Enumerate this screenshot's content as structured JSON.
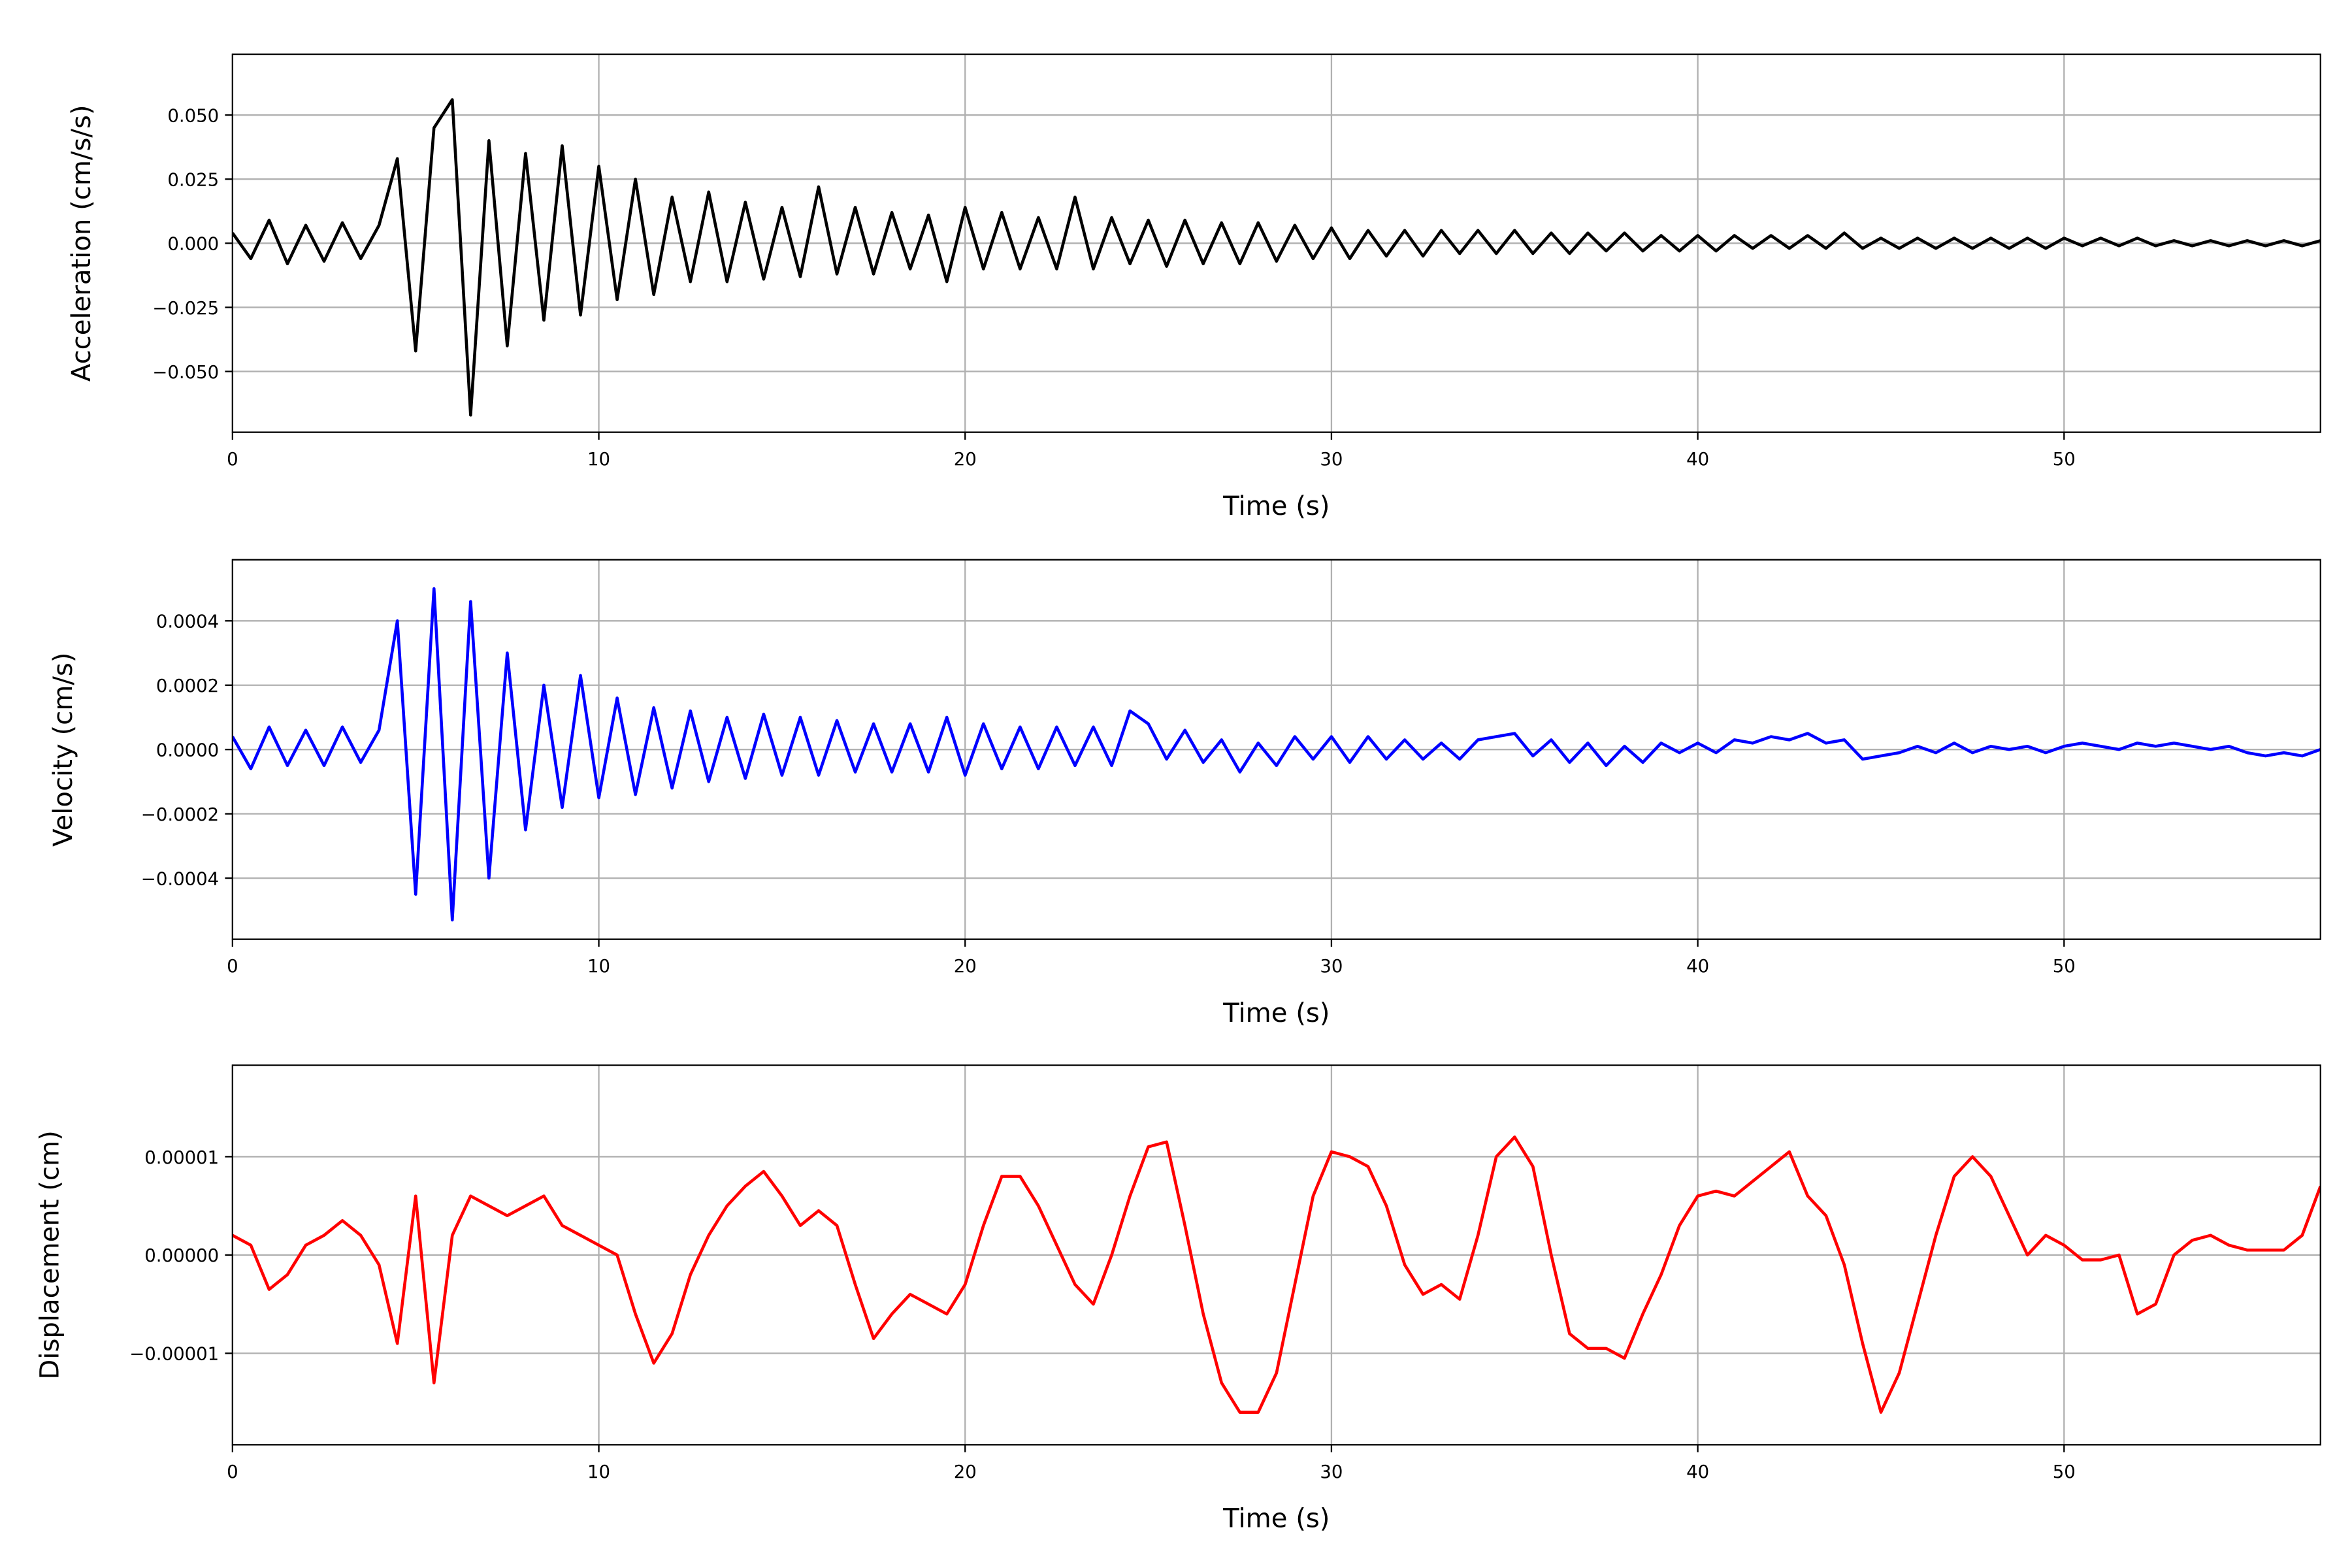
{
  "chart_data": [
    {
      "type": "line",
      "ylabel": "Acceleration (cm/s/s)",
      "xlabel": "Time (s)",
      "grid": true,
      "xlim": [
        0,
        57
      ],
      "xticks": [
        0,
        10,
        20,
        30,
        40,
        50
      ],
      "ylim": [
        -0.0737,
        0.0737
      ],
      "yticks": [
        {
          "value": -0.05,
          "label": "−0.050"
        },
        {
          "value": -0.025,
          "label": "−0.025"
        },
        {
          "value": 0,
          "label": "0.000"
        },
        {
          "value": 0.025,
          "label": "0.025"
        },
        {
          "value": 0.05,
          "label": "0.050"
        }
      ],
      "x": [
        0,
        0.5,
        1,
        1.5,
        2,
        2.5,
        3,
        3.5,
        4,
        4.5,
        5,
        5.5,
        6,
        6.5,
        7,
        7.5,
        8,
        8.5,
        9,
        9.5,
        10,
        10.5,
        11,
        11.5,
        12,
        12.5,
        13,
        13.5,
        14,
        14.5,
        15,
        15.5,
        16,
        16.5,
        17,
        17.5,
        18,
        18.5,
        19,
        19.5,
        20,
        20.5,
        21,
        21.5,
        22,
        22.5,
        23,
        23.5,
        24,
        24.5,
        25,
        25.5,
        26,
        26.5,
        27,
        27.5,
        28,
        28.5,
        29,
        29.5,
        30,
        30.5,
        31,
        31.5,
        32,
        32.5,
        33,
        33.5,
        34,
        34.5,
        35,
        35.5,
        36,
        36.5,
        37,
        37.5,
        38,
        38.5,
        39,
        39.5,
        40,
        40.5,
        41,
        41.5,
        42,
        42.5,
        43,
        43.5,
        44,
        44.5,
        45,
        45.5,
        46,
        46.5,
        47,
        47.5,
        48,
        48.5,
        49,
        49.5,
        50,
        50.5,
        51,
        51.5,
        52,
        52.5,
        53,
        53.5,
        54,
        54.5,
        55,
        55.5,
        56,
        56.5,
        57
      ],
      "series": [
        {
          "color": "#000000",
          "values": [
            0.004,
            -0.006,
            0.009,
            -0.008,
            0.007,
            -0.007,
            0.008,
            -0.006,
            0.007,
            0.033,
            -0.042,
            0.045,
            0.056,
            -0.067,
            0.04,
            -0.04,
            0.035,
            -0.03,
            0.038,
            -0.028,
            0.03,
            -0.022,
            0.025,
            -0.02,
            0.018,
            -0.015,
            0.02,
            -0.015,
            0.016,
            -0.014,
            0.014,
            -0.013,
            0.022,
            -0.012,
            0.014,
            -0.012,
            0.012,
            -0.01,
            0.011,
            -0.015,
            0.014,
            -0.01,
            0.012,
            -0.01,
            0.01,
            -0.01,
            0.018,
            -0.01,
            0.01,
            -0.008,
            0.009,
            -0.009,
            0.009,
            -0.008,
            0.008,
            -0.008,
            0.008,
            -0.007,
            0.007,
            -0.006,
            0.006,
            -0.006,
            0.005,
            -0.005,
            0.005,
            -0.005,
            0.005,
            -0.004,
            0.005,
            -0.004,
            0.005,
            -0.004,
            0.004,
            -0.004,
            0.004,
            -0.003,
            0.004,
            -0.003,
            0.003,
            -0.003,
            0.003,
            -0.003,
            0.003,
            -0.002,
            0.003,
            -0.002,
            0.003,
            -0.002,
            0.004,
            -0.002,
            0.002,
            -0.002,
            0.002,
            -0.002,
            0.002,
            -0.002,
            0.002,
            -0.002,
            0.002,
            -0.002,
            0.002,
            -0.001,
            0.002,
            -0.001,
            0.002,
            -0.001,
            0.001,
            -0.001,
            0.001,
            -0.001,
            0.001,
            -0.001,
            0.001,
            -0.001,
            0.001
          ]
        }
      ]
    },
    {
      "type": "line",
      "ylabel": "Velocity (cm/s)",
      "xlabel": "Time (s)",
      "grid": true,
      "xlim": [
        0,
        57
      ],
      "xticks": [
        0,
        10,
        20,
        30,
        40,
        50
      ],
      "ylim": [
        -0.00059,
        0.00059
      ],
      "yticks": [
        {
          "value": -0.0004,
          "label": "−0.0004"
        },
        {
          "value": -0.0002,
          "label": "−0.0002"
        },
        {
          "value": 0,
          "label": "0.0000"
        },
        0.0002,
        0.0004
      ],
      "x": [
        0,
        0.5,
        1,
        1.5,
        2,
        2.5,
        3,
        3.5,
        4,
        4.5,
        5,
        5.5,
        6,
        6.5,
        7,
        7.5,
        8,
        8.5,
        9,
        9.5,
        10,
        10.5,
        11,
        11.5,
        12,
        12.5,
        13,
        13.5,
        14,
        14.5,
        15,
        15.5,
        16,
        16.5,
        17,
        17.5,
        18,
        18.5,
        19,
        19.5,
        20,
        20.5,
        21,
        21.5,
        22,
        22.5,
        23,
        23.5,
        24,
        24.5,
        25,
        25.5,
        26,
        26.5,
        27,
        27.5,
        28,
        28.5,
        29,
        29.5,
        30,
        30.5,
        31,
        31.5,
        32,
        32.5,
        33,
        33.5,
        34,
        34.5,
        35,
        35.5,
        36,
        36.5,
        37,
        37.5,
        38,
        38.5,
        39,
        39.5,
        40,
        40.5,
        41,
        41.5,
        42,
        42.5,
        43,
        43.5,
        44,
        44.5,
        45,
        45.5,
        46,
        46.5,
        47,
        47.5,
        48,
        48.5,
        49,
        49.5,
        50,
        50.5,
        51,
        51.5,
        52,
        52.5,
        53,
        53.5,
        54,
        54.5,
        55,
        55.5,
        56,
        56.5,
        57
      ],
      "series": [
        {
          "color": "#0000ff",
          "values": [
            4e-05,
            -6e-05,
            7e-05,
            -5e-05,
            6e-05,
            -5e-05,
            7e-05,
            -4e-05,
            6e-05,
            0.0004,
            -0.00045,
            0.0005,
            -0.00053,
            0.00046,
            -0.0004,
            0.0003,
            -0.00025,
            0.0002,
            -0.00018,
            0.00023,
            -0.00015,
            0.00016,
            -0.00014,
            0.00013,
            -0.00012,
            0.00012,
            -0.0001,
            0.0001,
            -9e-05,
            0.00011,
            -8e-05,
            0.0001,
            -8e-05,
            9e-05,
            -7e-05,
            8e-05,
            -7e-05,
            8e-05,
            -7e-05,
            0.0001,
            -8e-05,
            8e-05,
            -6e-05,
            7e-05,
            -6e-05,
            7e-05,
            -5e-05,
            7e-05,
            -5e-05,
            0.00012,
            8e-05,
            -3e-05,
            6e-05,
            -4e-05,
            3e-05,
            -7e-05,
            2e-05,
            -5e-05,
            4e-05,
            -3e-05,
            4e-05,
            -4e-05,
            4e-05,
            -3e-05,
            3e-05,
            -3e-05,
            2e-05,
            -3e-05,
            3e-05,
            4e-05,
            5e-05,
            -2e-05,
            3e-05,
            -4e-05,
            2e-05,
            -5e-05,
            1e-05,
            -4e-05,
            2e-05,
            -1e-05,
            2e-05,
            -1e-05,
            3e-05,
            2e-05,
            4e-05,
            3e-05,
            5e-05,
            2e-05,
            3e-05,
            -3e-05,
            -2e-05,
            -1e-05,
            1e-05,
            -1e-05,
            2e-05,
            -1e-05,
            1e-05,
            0,
            1e-05,
            -1e-05,
            1e-05,
            2e-05,
            1e-05,
            0,
            2e-05,
            1e-05,
            2e-05,
            1e-05,
            0,
            1e-05,
            -1e-05,
            -2e-05,
            -1e-05,
            -2e-05,
            0
          ]
        }
      ]
    },
    {
      "type": "line",
      "ylabel": "Displacement (cm)",
      "xlabel": "Time (s)",
      "grid": true,
      "xlim": [
        0,
        57
      ],
      "xticks": [
        0,
        10,
        20,
        30,
        40,
        50
      ],
      "ylim": [
        -1.93e-05,
        1.93e-05
      ],
      "yticks": [
        {
          "value": -1e-05,
          "label": "−0.00001"
        },
        {
          "value": 0,
          "label": "0.00000"
        },
        1e-05
      ],
      "x": [
        0,
        0.5,
        1,
        1.5,
        2,
        2.5,
        3,
        3.5,
        4,
        4.5,
        5,
        5.5,
        6,
        6.5,
        7,
        7.5,
        8,
        8.5,
        9,
        9.5,
        10,
        10.5,
        11,
        11.5,
        12,
        12.5,
        13,
        13.5,
        14,
        14.5,
        15,
        15.5,
        16,
        16.5,
        17,
        17.5,
        18,
        18.5,
        19,
        19.5,
        20,
        20.5,
        21,
        21.5,
        22,
        22.5,
        23,
        23.5,
        24,
        24.5,
        25,
        25.5,
        26,
        26.5,
        27,
        27.5,
        28,
        28.5,
        29,
        29.5,
        30,
        30.5,
        31,
        31.5,
        32,
        32.5,
        33,
        33.5,
        34,
        34.5,
        35,
        35.5,
        36,
        36.5,
        37,
        37.5,
        38,
        38.5,
        39,
        39.5,
        40,
        40.5,
        41,
        41.5,
        42,
        42.5,
        43,
        43.5,
        44,
        44.5,
        45,
        45.5,
        46,
        46.5,
        47,
        47.5,
        48,
        48.5,
        49,
        49.5,
        50,
        50.5,
        51,
        51.5,
        52,
        52.5,
        53,
        53.5,
        54,
        54.5,
        55,
        55.5,
        56,
        56.5,
        57
      ],
      "series": [
        {
          "color": "#ff0000",
          "values": [
            2e-06,
            1e-06,
            -3.5e-06,
            -2e-06,
            1e-06,
            2e-06,
            3.5e-06,
            2e-06,
            -1e-06,
            -9e-06,
            6e-06,
            -1.3e-05,
            2e-06,
            6e-06,
            5e-06,
            4e-06,
            5e-06,
            6e-06,
            3e-06,
            2e-06,
            1e-06,
            0,
            -6e-06,
            -1.1e-05,
            -8e-06,
            -2e-06,
            2e-06,
            5e-06,
            7e-06,
            8.5e-06,
            6e-06,
            3e-06,
            4.5e-06,
            3e-06,
            -3e-06,
            -8.5e-06,
            -6e-06,
            -4e-06,
            -5e-06,
            -6e-06,
            -3e-06,
            3e-06,
            8e-06,
            8e-06,
            5e-06,
            1e-06,
            -3e-06,
            -5e-06,
            0,
            6e-06,
            1.1e-05,
            1.15e-05,
            3e-06,
            -6e-06,
            -1.3e-05,
            -1.6e-05,
            -1.6e-05,
            -1.2e-05,
            -3e-06,
            6e-06,
            1.05e-05,
            1e-05,
            9e-06,
            5e-06,
            -1e-06,
            -4e-06,
            -3e-06,
            -4.5e-06,
            2e-06,
            1e-05,
            1.2e-05,
            9e-06,
            0,
            -8e-06,
            -9.5e-06,
            -9.5e-06,
            -1.05e-05,
            -6e-06,
            -2e-06,
            3e-06,
            6e-06,
            6.5e-06,
            6e-06,
            7.5e-06,
            9e-06,
            1.05e-05,
            6e-06,
            4e-06,
            -1e-06,
            -9e-06,
            -1.6e-05,
            -1.2e-05,
            -5e-06,
            2e-06,
            8e-06,
            1e-05,
            8e-06,
            4e-06,
            0,
            2e-06,
            1e-06,
            -5e-07,
            -5e-07,
            0,
            -6e-06,
            -5e-06,
            0,
            1.5e-06,
            2e-06,
            1e-06,
            5e-07,
            5e-07,
            5e-07,
            2e-06,
            7e-06
          ]
        }
      ]
    }
  ]
}
